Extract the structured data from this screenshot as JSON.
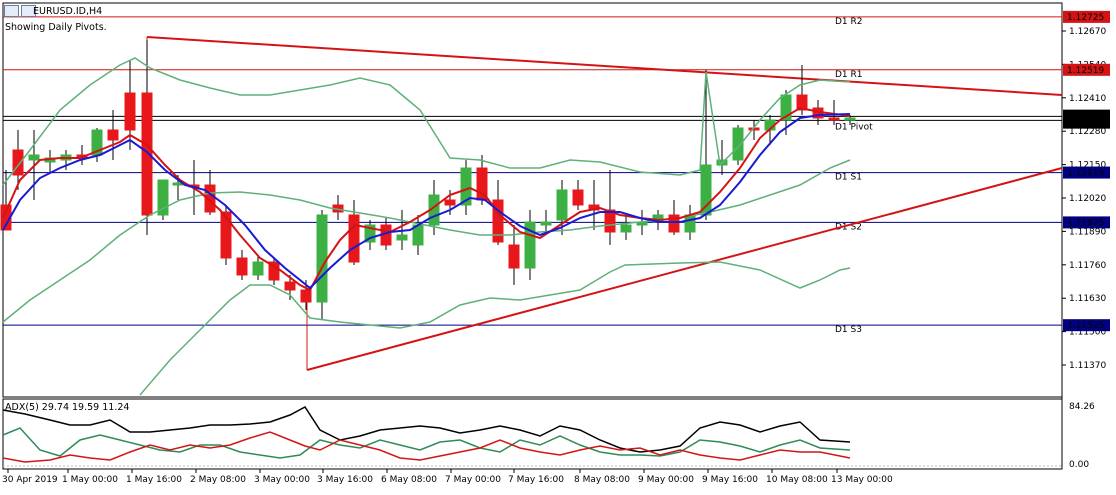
{
  "chart_window": {
    "symbol_title": "EURUSD.ID,H4",
    "info_line": "Showing Daily Pivots."
  },
  "price_axis": {
    "ticks": [
      "1.12670",
      "1.12540",
      "1.12410",
      "1.12280",
      "1.12150",
      "1.12020",
      "1.11890",
      "1.11760",
      "1.11630",
      "1.11500",
      "1.11370"
    ],
    "current_prices": [
      "1.12325",
      "1.12325"
    ],
    "levels": [
      {
        "name": "D1 R2",
        "price": "1.12725",
        "value": 1.12725
      },
      {
        "name": "D1 R1",
        "price": "1.12519",
        "value": 1.12519
      },
      {
        "name": "D1 Pivot",
        "price": "",
        "value": 1.12322
      },
      {
        "name": "D1 S1",
        "price": "1.12119",
        "value": 1.12119
      },
      {
        "name": "D1 S2",
        "price": "1.11925",
        "value": 1.11925
      },
      {
        "name": "D1 S3",
        "price": "1.11525",
        "value": 1.11525
      }
    ]
  },
  "time_axis": {
    "labels": [
      "30 Apr 2019",
      "1 May 00:00",
      "1 May 16:00",
      "2 May 08:00",
      "3 May 00:00",
      "3 May 16:00",
      "6 May 08:00",
      "7 May 00:00",
      "7 May 16:00",
      "8 May 08:00",
      "9 May 00:00",
      "9 May 16:00",
      "10 May 08:00",
      "13 May 00:00"
    ]
  },
  "indicator": {
    "title": "ADX(5) 29.74 19.59 11.24",
    "scale_top": "84.26",
    "scale_bottom": "0.00",
    "colors": {
      "adx": "#000000",
      "plus_di": "#2e8b57",
      "minus_di": "#d41414"
    }
  },
  "colors": {
    "bull_candle": "#3cb043",
    "bear_candle": "#e8171b",
    "pivot_line": "#000080",
    "resistance_line": "#d41414",
    "bollinger": "#5fb07a",
    "ma_fast": "#d41414",
    "ma_slow": "#1a1ad4",
    "trendline": "#d41414"
  }
}
